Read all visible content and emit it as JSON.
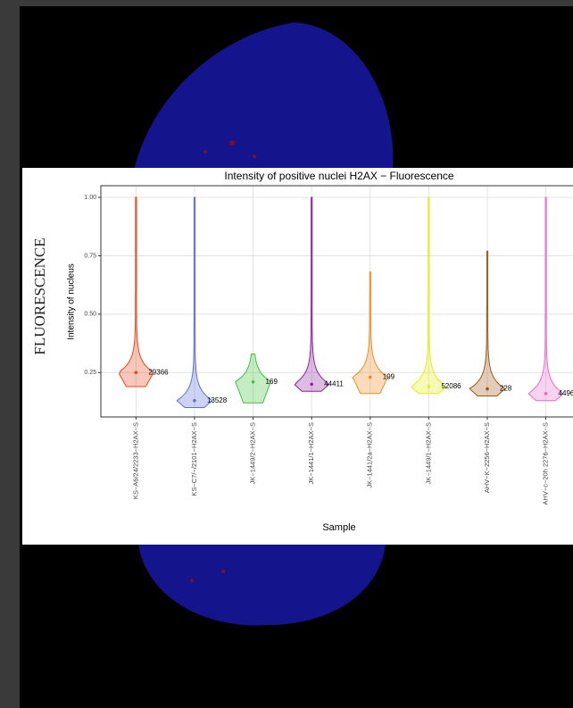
{
  "side_label": "FLUORESCENCE",
  "chart_data": {
    "type": "violin",
    "title": "Intensity of positive nuclei H2AX − Fluorescence",
    "x_label": "Sample",
    "y_label": "Intensity of nucleus",
    "categories": [
      "KS−A6/24/2233−H2AX−S",
      "KS−C7/−/2101−H2AX−S",
      "JK−1449/2−H2AX−S",
      "JK−1441/1−H2AX−S",
      "JK−1441/2a−H2AX−S",
      "JK−1449/1−H2AX−S",
      "AHV−K−2256−H2AX−S",
      "AHV−c−20h 2276−H2AX−S"
    ],
    "colors": [
      "#e8441c",
      "#5b6fd8",
      "#3cc23c",
      "#8e1fa0",
      "#f08a1e",
      "#e4ee10",
      "#9a5a16",
      "#e86bcb"
    ],
    "values": [
      0.25,
      0.13,
      0.21,
      0.2,
      0.23,
      0.19,
      0.18,
      0.16
    ],
    "min": [
      0.19,
      0.1,
      0.12,
      0.17,
      0.16,
      0.16,
      0.15,
      0.13
    ],
    "max": [
      1.0,
      1.0,
      0.33,
      1.0,
      0.68,
      1.0,
      0.77,
      1.0
    ],
    "counts": [
      29366,
      13528,
      169,
      44411,
      199,
      52086,
      228,
      4496
    ],
    "ylim": [
      0.06,
      1.05
    ],
    "yticks": [
      {
        "value": 0.25,
        "label": "0.25"
      },
      {
        "value": 0.5,
        "label": "0.50"
      },
      {
        "value": 0.75,
        "label": "0.75"
      },
      {
        "value": 1.0,
        "label": "1.00"
      }
    ],
    "grid": true
  }
}
